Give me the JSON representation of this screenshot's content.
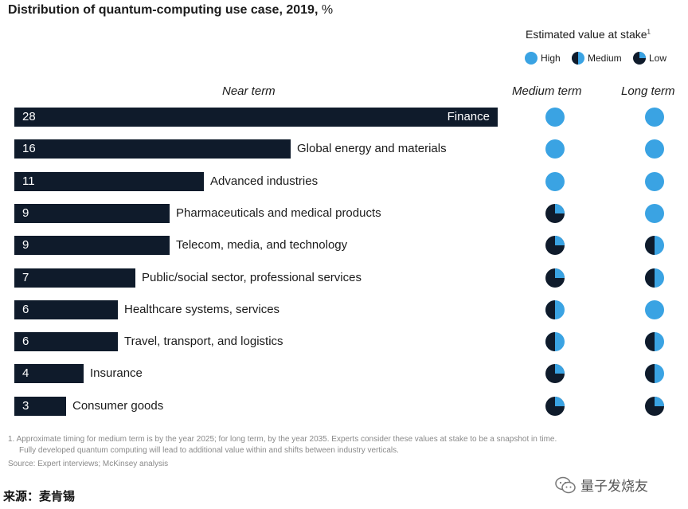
{
  "title_bold": "Distribution of quantum-computing use case, 2019,",
  "title_unit": "%",
  "legend": {
    "title": "Estimated value at stake",
    "footnote_mark": "1",
    "items": [
      {
        "key": "high",
        "label": "High"
      },
      {
        "key": "medium",
        "label": "Medium"
      },
      {
        "key": "low",
        "label": "Low"
      }
    ]
  },
  "columns": {
    "near": "Near term",
    "medium": "Medium term",
    "long": "Long term"
  },
  "chart_data": {
    "type": "bar",
    "orientation": "horizontal",
    "title": "Distribution of quantum-computing use case, 2019, %",
    "xlim": [
      0,
      28
    ],
    "categories": [
      "Finance",
      "Global energy and materials",
      "Advanced industries",
      "Pharmaceuticals and medical products",
      "Telecom, media, and technology",
      "Public/social sector, professional services",
      "Healthcare systems, services",
      "Travel, transport, and logistics",
      "Insurance",
      "Consumer goods"
    ],
    "values": [
      28,
      16,
      11,
      9,
      9,
      7,
      6,
      6,
      4,
      3
    ],
    "medium_term": [
      "high",
      "high",
      "high",
      "low",
      "low",
      "low",
      "medium",
      "medium",
      "low",
      "low"
    ],
    "long_term": [
      "high",
      "high",
      "high",
      "high",
      "medium",
      "medium",
      "high",
      "medium",
      "medium",
      "low"
    ]
  },
  "colors": {
    "bar": "#0f1b2b",
    "high": "#3aa3e3",
    "dark": "#0f1b2b"
  },
  "footnotes": {
    "note1": "1. Approximate timing for medium term is by the year 2025; for long term, by the year 2035. Experts consider these values at stake to be a snapshot in time.",
    "note1b": "Fully developed quantum computing will lead to additional value within and shifts between industry verticals.",
    "source": "Source: Expert interviews; McKinsey analysis"
  },
  "source_cn": "来源：麦肯锡",
  "watermark": "量子发烧友"
}
